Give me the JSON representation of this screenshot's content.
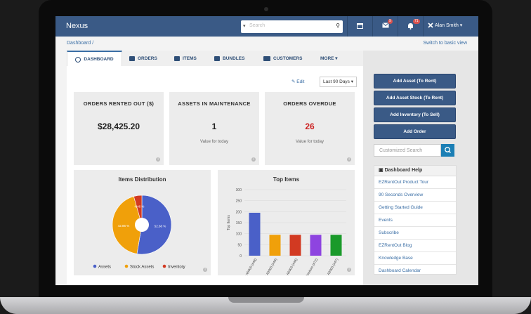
{
  "app": {
    "brand": "Nexus",
    "search_placeholder": "Search",
    "notifications": {
      "messages": "9",
      "alerts": "71"
    },
    "user_name": "Alan Smith ▾"
  },
  "subbar": {
    "breadcrumb": "Dashboard /",
    "switch_view": "Switch to basic view"
  },
  "tabs": [
    {
      "label": "DASHBOARD",
      "icon": "clock-icon"
    },
    {
      "label": "ORDERS",
      "icon": "calendar-icon"
    },
    {
      "label": "ITEMS",
      "icon": "briefcase-icon"
    },
    {
      "label": "BUNDLES",
      "icon": "bundle-icon"
    },
    {
      "label": "CUSTOMERS",
      "icon": "users-icon"
    },
    {
      "label": "MORE ▾",
      "icon": ""
    }
  ],
  "toolbar": {
    "edit_label": "Edit",
    "range_label": "Last 90 Days ▾"
  },
  "stats": [
    {
      "title": "ORDERS RENTED OUT ($)",
      "value": "$28,425.20",
      "subtitle": "",
      "color": "#222222"
    },
    {
      "title": "ASSETS IN MAINTENANCE",
      "value": "1",
      "subtitle": "Value for today",
      "color": "#222222"
    },
    {
      "title": "ORDERS OVERDUE",
      "value": "26",
      "subtitle": "Value for today",
      "color": "#cc2222"
    }
  ],
  "sidebar": {
    "buttons": [
      "Add Asset (To Rent)",
      "Add Asset Stock (To Rent)",
      "Add Inventory (To Sell)",
      "Add Order"
    ],
    "search_placeholder": "Customized Search",
    "help_title": "Dashboard Help",
    "help_links": [
      "EZRentOut Product Tour",
      "90 Seconds Overview",
      "Getting Started Guide",
      "Events",
      "Subscribe",
      "EZRentOut Blog",
      "Knowledge Base",
      "Dashboard Calendar"
    ]
  },
  "colors": {
    "navbar": "#3a5a86",
    "accent": "#3a6ea5",
    "danger": "#cc2222"
  },
  "chart_data": [
    {
      "type": "pie",
      "title": "Items Distribution",
      "slices": [
        {
          "label": "Assets",
          "value": 52.68,
          "display": "52.68 %",
          "color": "#4a60c8"
        },
        {
          "label": "Stock Assets",
          "value": 42.86,
          "display": "42.86 %",
          "color": "#f0a00a"
        },
        {
          "label": "Inventory",
          "value": 4.46,
          "display": "4.46 %",
          "color": "#d23a22"
        }
      ],
      "legend": "bottom"
    },
    {
      "type": "bar",
      "title": "Top Items",
      "ylabel": "Top Items",
      "ylim": [
        0,
        300
      ],
      "yticks": [
        0,
        50,
        100,
        150,
        200,
        250,
        300
      ],
      "categories": [
        "Sony A6000 (#48)",
        "Sony A6000 (#49)",
        "Sony A6000 (#46)",
        "22\" Monitors (#72)",
        "Sony A6000 (#47)"
      ],
      "values": [
        195,
        95,
        95,
        95,
        95
      ],
      "colors": [
        "#4a60c8",
        "#f0a00a",
        "#d23a22",
        "#8e44e0",
        "#1a9a2a"
      ],
      "grid": true,
      "legend": "none"
    }
  ]
}
